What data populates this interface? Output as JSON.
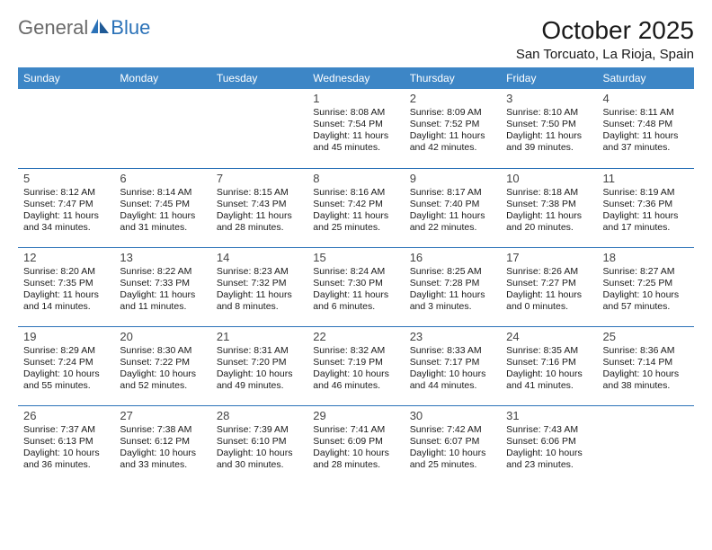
{
  "brand": {
    "general": "General",
    "blue": "Blue"
  },
  "title": "October 2025",
  "location": "San Torcuato, La Rioja, Spain",
  "colors": {
    "header_bg": "#3d86c6",
    "header_text": "#ffffff",
    "rule": "#2b72b8",
    "text": "#1a1a1a",
    "brand_blue": "#2b72b8",
    "brand_gray": "#6a6a6a"
  },
  "fonts": {
    "title_size": 28,
    "location_size": 15,
    "header_size": 12,
    "daynum_size": 13,
    "info_size": 10.5
  },
  "weekdays": [
    "Sunday",
    "Monday",
    "Tuesday",
    "Wednesday",
    "Thursday",
    "Friday",
    "Saturday"
  ],
  "weeks": [
    [
      null,
      null,
      null,
      {
        "n": "1",
        "sr": "8:08 AM",
        "ss": "7:54 PM",
        "dl": "11 hours and 45 minutes."
      },
      {
        "n": "2",
        "sr": "8:09 AM",
        "ss": "7:52 PM",
        "dl": "11 hours and 42 minutes."
      },
      {
        "n": "3",
        "sr": "8:10 AM",
        "ss": "7:50 PM",
        "dl": "11 hours and 39 minutes."
      },
      {
        "n": "4",
        "sr": "8:11 AM",
        "ss": "7:48 PM",
        "dl": "11 hours and 37 minutes."
      }
    ],
    [
      {
        "n": "5",
        "sr": "8:12 AM",
        "ss": "7:47 PM",
        "dl": "11 hours and 34 minutes."
      },
      {
        "n": "6",
        "sr": "8:14 AM",
        "ss": "7:45 PM",
        "dl": "11 hours and 31 minutes."
      },
      {
        "n": "7",
        "sr": "8:15 AM",
        "ss": "7:43 PM",
        "dl": "11 hours and 28 minutes."
      },
      {
        "n": "8",
        "sr": "8:16 AM",
        "ss": "7:42 PM",
        "dl": "11 hours and 25 minutes."
      },
      {
        "n": "9",
        "sr": "8:17 AM",
        "ss": "7:40 PM",
        "dl": "11 hours and 22 minutes."
      },
      {
        "n": "10",
        "sr": "8:18 AM",
        "ss": "7:38 PM",
        "dl": "11 hours and 20 minutes."
      },
      {
        "n": "11",
        "sr": "8:19 AM",
        "ss": "7:36 PM",
        "dl": "11 hours and 17 minutes."
      }
    ],
    [
      {
        "n": "12",
        "sr": "8:20 AM",
        "ss": "7:35 PM",
        "dl": "11 hours and 14 minutes."
      },
      {
        "n": "13",
        "sr": "8:22 AM",
        "ss": "7:33 PM",
        "dl": "11 hours and 11 minutes."
      },
      {
        "n": "14",
        "sr": "8:23 AM",
        "ss": "7:32 PM",
        "dl": "11 hours and 8 minutes."
      },
      {
        "n": "15",
        "sr": "8:24 AM",
        "ss": "7:30 PM",
        "dl": "11 hours and 6 minutes."
      },
      {
        "n": "16",
        "sr": "8:25 AM",
        "ss": "7:28 PM",
        "dl": "11 hours and 3 minutes."
      },
      {
        "n": "17",
        "sr": "8:26 AM",
        "ss": "7:27 PM",
        "dl": "11 hours and 0 minutes."
      },
      {
        "n": "18",
        "sr": "8:27 AM",
        "ss": "7:25 PM",
        "dl": "10 hours and 57 minutes."
      }
    ],
    [
      {
        "n": "19",
        "sr": "8:29 AM",
        "ss": "7:24 PM",
        "dl": "10 hours and 55 minutes."
      },
      {
        "n": "20",
        "sr": "8:30 AM",
        "ss": "7:22 PM",
        "dl": "10 hours and 52 minutes."
      },
      {
        "n": "21",
        "sr": "8:31 AM",
        "ss": "7:20 PM",
        "dl": "10 hours and 49 minutes."
      },
      {
        "n": "22",
        "sr": "8:32 AM",
        "ss": "7:19 PM",
        "dl": "10 hours and 46 minutes."
      },
      {
        "n": "23",
        "sr": "8:33 AM",
        "ss": "7:17 PM",
        "dl": "10 hours and 44 minutes."
      },
      {
        "n": "24",
        "sr": "8:35 AM",
        "ss": "7:16 PM",
        "dl": "10 hours and 41 minutes."
      },
      {
        "n": "25",
        "sr": "8:36 AM",
        "ss": "7:14 PM",
        "dl": "10 hours and 38 minutes."
      }
    ],
    [
      {
        "n": "26",
        "sr": "7:37 AM",
        "ss": "6:13 PM",
        "dl": "10 hours and 36 minutes."
      },
      {
        "n": "27",
        "sr": "7:38 AM",
        "ss": "6:12 PM",
        "dl": "10 hours and 33 minutes."
      },
      {
        "n": "28",
        "sr": "7:39 AM",
        "ss": "6:10 PM",
        "dl": "10 hours and 30 minutes."
      },
      {
        "n": "29",
        "sr": "7:41 AM",
        "ss": "6:09 PM",
        "dl": "10 hours and 28 minutes."
      },
      {
        "n": "30",
        "sr": "7:42 AM",
        "ss": "6:07 PM",
        "dl": "10 hours and 25 minutes."
      },
      {
        "n": "31",
        "sr": "7:43 AM",
        "ss": "6:06 PM",
        "dl": "10 hours and 23 minutes."
      },
      null
    ]
  ],
  "labels": {
    "sunrise": "Sunrise:",
    "sunset": "Sunset:",
    "daylight": "Daylight:"
  }
}
